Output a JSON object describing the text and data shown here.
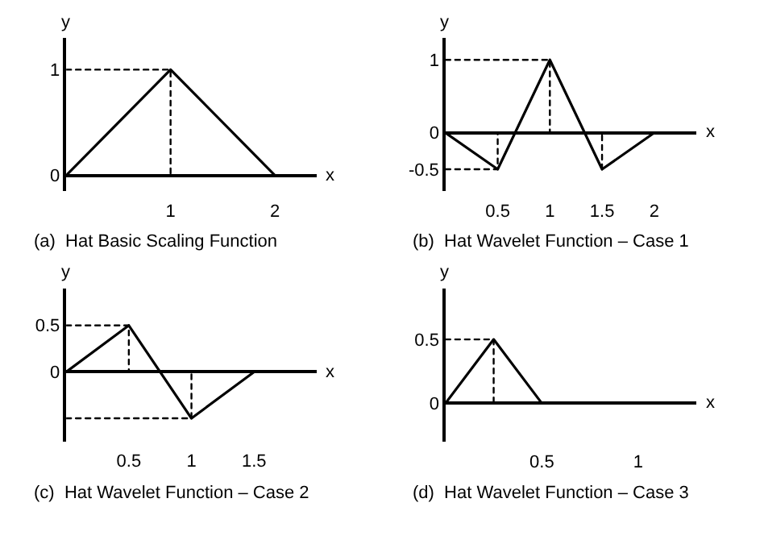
{
  "chart_data": [
    {
      "type": "line",
      "title": "(a)  Hat Basic Scaling Function",
      "xlabel": "x",
      "ylabel": "y",
      "xlim": [
        0,
        2.4
      ],
      "ylim": [
        -0.15,
        1.3
      ],
      "xticks": [
        1,
        2
      ],
      "yticks": [
        0,
        1
      ],
      "series": [
        {
          "color": "#000000",
          "x": [
            0,
            1,
            2
          ],
          "values": [
            0,
            1,
            0
          ]
        },
        {
          "color": "#000000",
          "line_style": "dotted",
          "x": [
            0,
            1,
            1,
            1
          ],
          "values": [
            1,
            1,
            1,
            0
          ]
        }
      ]
    },
    {
      "type": "line",
      "title": "(b)  Hat Wavelet Function – Case 1",
      "xlabel": "x",
      "ylabel": "y",
      "xlim": [
        0,
        2.4
      ],
      "ylim": [
        -0.8,
        1.3
      ],
      "xticks": [
        0.5,
        1,
        1.5,
        2
      ],
      "yticks": [
        1,
        0,
        -0.5
      ],
      "series": [
        {
          "color": "#000000",
          "x": [
            0,
            0.5,
            1,
            1.5,
            2
          ],
          "values": [
            0,
            -0.5,
            1,
            -0.5,
            0
          ]
        },
        {
          "color": "#000000",
          "line_style": "dotted",
          "x": [
            0,
            1,
            1,
            null,
            0,
            0.5,
            0.5,
            null,
            1.5,
            1.5
          ],
          "values": [
            1,
            1,
            0,
            null,
            -0.5,
            -0.5,
            0,
            null,
            -0.5,
            0
          ]
        }
      ]
    },
    {
      "type": "line",
      "title": "(c)  Hat Wavelet Function – Case 2",
      "xlabel": "x",
      "ylabel": "y",
      "xlim": [
        0,
        2
      ],
      "ylim": [
        -0.75,
        0.9
      ],
      "xticks": [
        0.5,
        1,
        1.5
      ],
      "yticks": [
        0,
        0.5
      ],
      "series": [
        {
          "color": "#000000",
          "x": [
            0,
            0.5,
            1,
            1.5
          ],
          "values": [
            0,
            0.5,
            -0.5,
            0
          ]
        },
        {
          "color": "#000000",
          "line_style": "dotted",
          "x": [
            0,
            0.5,
            0.5,
            null,
            0,
            1,
            1
          ],
          "values": [
            0.5,
            0.5,
            0,
            null,
            -0.5,
            -0.5,
            0
          ]
        }
      ]
    },
    {
      "type": "line",
      "title": "(d)  Hat Wavelet Function – Case 3",
      "xlabel": "x",
      "ylabel": "y",
      "xlim": [
        0,
        1.3
      ],
      "ylim": [
        -0.3,
        0.9
      ],
      "xticks": [
        0.5,
        1
      ],
      "yticks": [
        0,
        0.5
      ],
      "series": [
        {
          "color": "#000000",
          "x": [
            0,
            0.25,
            0.5
          ],
          "values": [
            0,
            0.5,
            0
          ]
        },
        {
          "color": "#000000",
          "line_style": "dotted",
          "x": [
            0,
            0.25,
            0.25
          ],
          "values": [
            0.5,
            0.5,
            0
          ]
        }
      ]
    }
  ]
}
